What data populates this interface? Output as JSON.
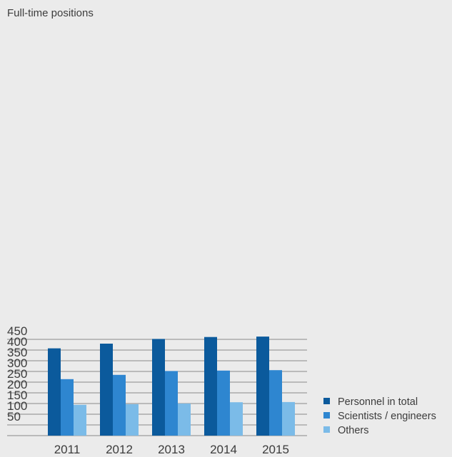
{
  "chart_data": {
    "type": "bar",
    "ylabel": "Full-time positions",
    "categories": [
      "2011",
      "2012",
      "2013",
      "2014",
      "2015"
    ],
    "yticks": [
      50,
      100,
      150,
      200,
      250,
      300,
      350,
      400,
      450
    ],
    "ylim": [
      0,
      450
    ],
    "grid": true,
    "legend_position": "bottom-right",
    "series": [
      {
        "name": "Personnel in total",
        "color": "#0b5a9c",
        "values": [
          408,
          430,
          452,
          461,
          463
        ]
      },
      {
        "name": "Scientists / engineers",
        "color": "#2e86d0",
        "values": [
          264,
          284,
          302,
          304,
          306
        ]
      },
      {
        "name": "Others",
        "color": "#7bbbe8",
        "values": [
          144,
          147,
          150,
          156,
          157
        ]
      }
    ]
  }
}
